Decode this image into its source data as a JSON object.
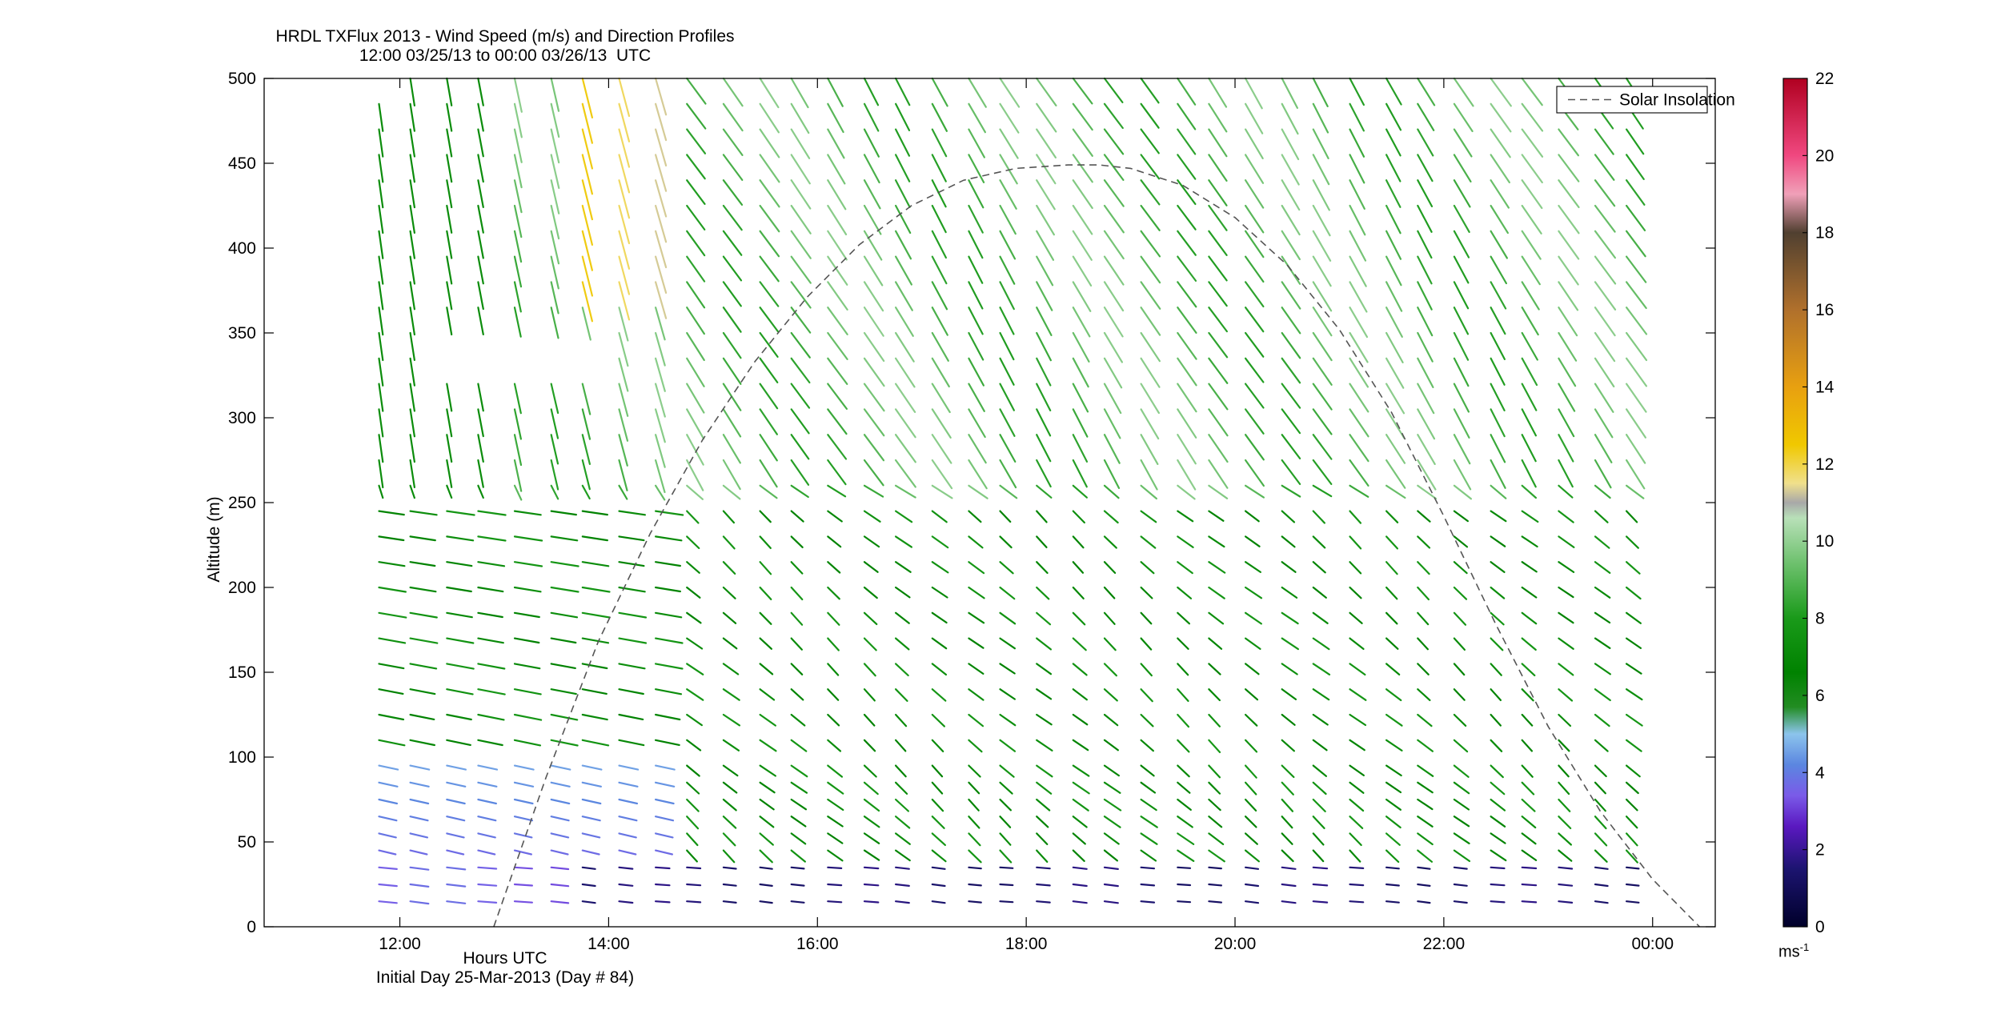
{
  "chart_data": {
    "type": "vector-field",
    "title": "HRDL TXFlux 2013 - Wind Speed (m/s) and Direction Profiles",
    "subtitle": "12:00 03/25/13 to 00:00 03/26/13  UTC",
    "xlabel": "Hours UTC",
    "xlabel_secondary": "Initial Day 25-Mar-2013 (Day # 84)",
    "ylabel": "Altitude (m)",
    "x_unit": "hours UTC",
    "xlim": [
      10.7,
      24.6
    ],
    "ylim": [
      0,
      500
    ],
    "x_ticks": [
      12,
      14,
      16,
      18,
      20,
      22,
      24
    ],
    "x_tick_labels": [
      "12:00",
      "14:00",
      "16:00",
      "18:00",
      "20:00",
      "22:00",
      "00:00"
    ],
    "y_ticks": [
      0,
      50,
      100,
      150,
      200,
      250,
      300,
      350,
      400,
      450,
      500
    ],
    "y_tick_labels": [
      "0",
      "50",
      "100",
      "150",
      "200",
      "250",
      "300",
      "350",
      "400",
      "450",
      "500"
    ],
    "grid": false,
    "legend": {
      "position": "top-right",
      "entries": [
        "Solar Insolation"
      ]
    },
    "colorbar": {
      "range": [
        0,
        22
      ],
      "ticks": [
        0,
        2,
        4,
        6,
        8,
        10,
        12,
        14,
        16,
        18,
        20,
        22
      ],
      "tick_labels": [
        "0",
        "2",
        "4",
        "6",
        "8",
        "10",
        "12",
        "14",
        "16",
        "18",
        "20",
        "22"
      ],
      "unit_base": "ms",
      "unit_exp": "-1",
      "stops": [
        {
          "v": 0,
          "color": "#00002a"
        },
        {
          "v": 1.5,
          "color": "#1c1470"
        },
        {
          "v": 2.6,
          "color": "#5a18c0"
        },
        {
          "v": 3.4,
          "color": "#7a5ae8"
        },
        {
          "v": 4.2,
          "color": "#5b86e0"
        },
        {
          "v": 5.0,
          "color": "#8cc4ec"
        },
        {
          "v": 5.7,
          "color": "#228c22"
        },
        {
          "v": 6.6,
          "color": "#008200"
        },
        {
          "v": 8.0,
          "color": "#1a9a1a"
        },
        {
          "v": 9.4,
          "color": "#6cc06c"
        },
        {
          "v": 10.6,
          "color": "#b8e0b8"
        },
        {
          "v": 11.0,
          "color": "#a8a8a8"
        },
        {
          "v": 11.5,
          "color": "#f0e08c"
        },
        {
          "v": 12.5,
          "color": "#f0c800"
        },
        {
          "v": 14.0,
          "color": "#e8a010"
        },
        {
          "v": 16.0,
          "color": "#b0702c"
        },
        {
          "v": 18.0,
          "color": "#504030"
        },
        {
          "v": 19.0,
          "color": "#f0a0b8"
        },
        {
          "v": 20.0,
          "color": "#f04880"
        },
        {
          "v": 22.0,
          "color": "#b00020"
        }
      ]
    },
    "times": [
      11.8,
      12.1,
      12.45,
      12.75,
      13.1,
      13.45,
      13.75,
      14.1,
      14.45,
      14.75,
      15.1,
      15.45,
      15.75,
      16.1,
      16.45,
      16.75,
      17.1,
      17.45,
      17.75,
      18.1,
      18.45,
      18.75,
      19.1,
      19.45,
      19.75,
      20.1,
      20.45,
      20.75,
      21.1,
      21.45,
      21.75,
      22.1,
      22.45,
      22.75,
      23.1,
      23.45,
      23.75
    ],
    "altitudes": [
      15,
      25,
      35,
      45,
      55,
      65,
      75,
      85,
      95,
      110,
      125,
      140,
      155,
      170,
      185,
      200,
      215,
      230,
      245,
      260,
      275,
      290,
      305,
      320,
      335,
      350,
      365,
      380,
      395,
      410,
      425,
      440,
      455,
      470,
      485,
      500
    ],
    "vectors": {
      "note": "wind barbs: direction in degrees (meteorological, from), speed in m/s",
      "speed_near_surface": 1.5,
      "speed_boundary_layer": 7.2,
      "speed_upper": 9.0,
      "peak_speed_region": {
        "time": [
          13.5,
          14.6
        ],
        "altitude": [
          380,
          500
        ],
        "speed": 12.8
      },
      "missing_region": {
        "time": [
          12.2,
          13.9
        ],
        "altitude": [
          330,
          360
        ]
      }
    },
    "series": [
      {
        "name": "Solar Insolation",
        "style": "dashed",
        "color": "#555555",
        "x": [
          12.9,
          13.4,
          13.9,
          14.4,
          14.9,
          15.4,
          15.9,
          16.4,
          16.9,
          17.4,
          17.9,
          18.4,
          18.7,
          19.0,
          19.5,
          20.0,
          20.5,
          21.0,
          21.5,
          22.0,
          22.5,
          23.0,
          23.5,
          24.0,
          24.45
        ],
        "y": [
          0,
          88,
          168,
          232,
          287,
          333,
          371,
          402,
          425,
          440,
          447,
          449,
          449,
          447,
          437,
          418,
          390,
          352,
          303,
          242,
          178,
          118,
          68,
          28,
          0
        ]
      }
    ]
  }
}
